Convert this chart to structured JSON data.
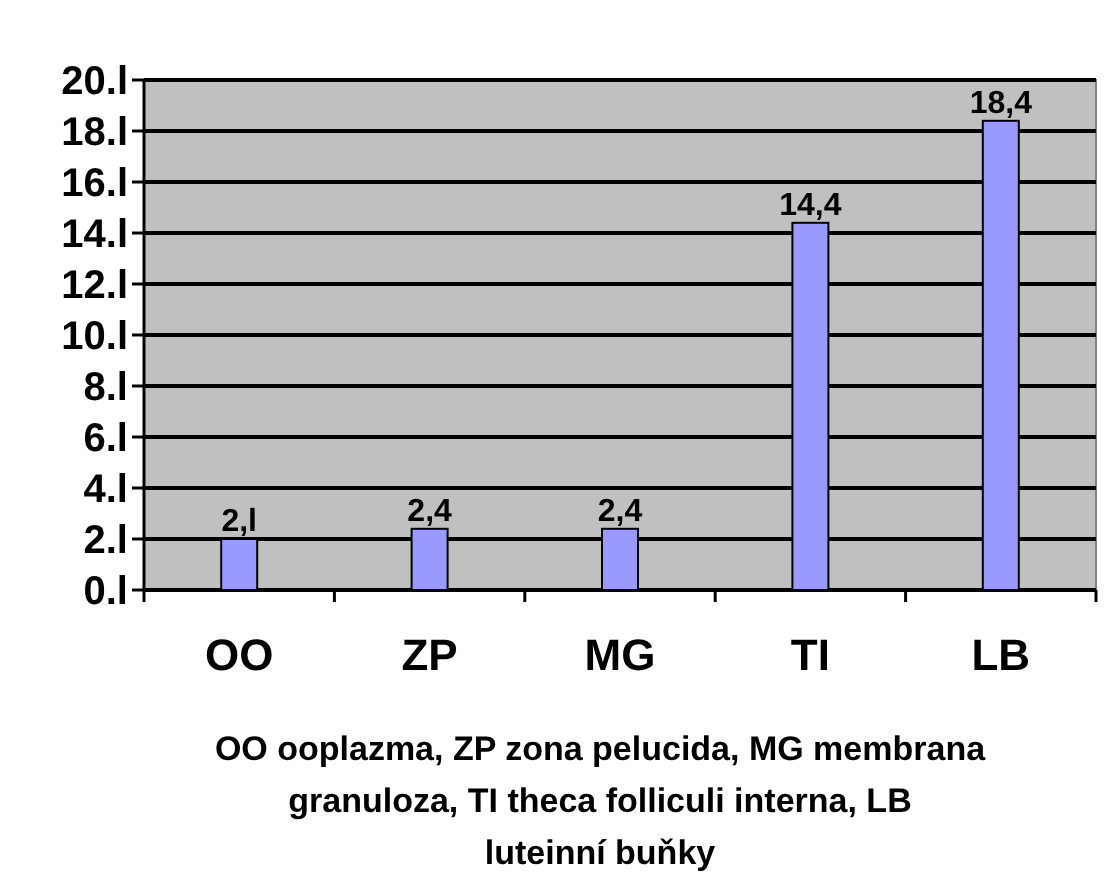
{
  "chart_data": {
    "type": "bar",
    "categories": [
      "OO",
      "ZP",
      "MG",
      "TI",
      "LB"
    ],
    "values": [
      2,
      2.4,
      2.4,
      14.4,
      18.4
    ],
    "value_labels": [
      "2,l",
      "2,4",
      "2,4",
      "14,4",
      "18,4"
    ],
    "color": "#9999ff",
    "ylim": [
      0,
      20
    ],
    "yticks": [
      {
        "value": 0,
        "label": "0.l"
      },
      {
        "value": 2,
        "label": "2.l"
      },
      {
        "value": 4,
        "label": "4.l"
      },
      {
        "value": 6,
        "label": "6.l"
      },
      {
        "value": 8,
        "label": "8.l"
      },
      {
        "value": 10,
        "label": "10.l"
      },
      {
        "value": 12,
        "label": "12.l"
      },
      {
        "value": 14,
        "label": "14.l"
      },
      {
        "value": 16,
        "label": "16.l"
      },
      {
        "value": 18,
        "label": "18.l"
      },
      {
        "value": 20,
        "label": "20.l"
      }
    ],
    "grid": "y",
    "xlabel": "OO ooplazma, ZP zona pelucida, MG membrana granuloza, TI theca folliculi interna, LB luteinní buňky"
  }
}
